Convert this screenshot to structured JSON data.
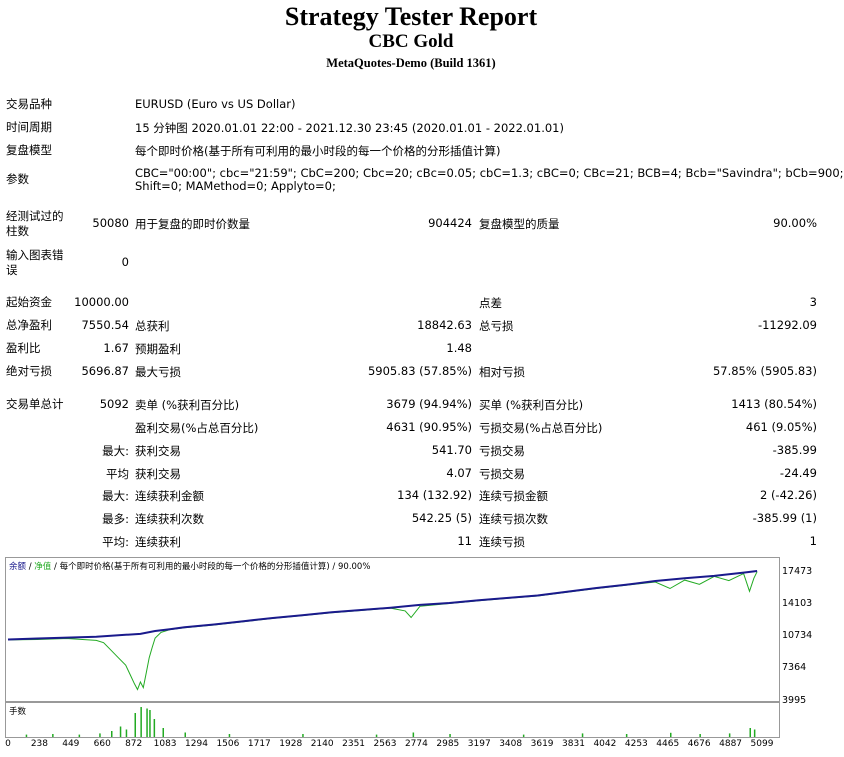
{
  "header": {
    "title": "Strategy Tester Report",
    "company": "CBC Gold",
    "server": "MetaQuotes-Demo (Build 1361)"
  },
  "settings": [
    {
      "label": "交易品种",
      "value": "EURUSD (Euro vs US Dollar)"
    },
    {
      "label": "时间周期",
      "value": "15 分钟图 2020.01.01 22:00 - 2021.12.30 23:45 (2020.01.01 - 2022.01.01)"
    },
    {
      "label": "复盘模型",
      "value": "每个即时价格(基于所有可利用的最小时段的每一个价格的分形插值计算)"
    },
    {
      "label": "参数",
      "value_line1": "CBC=\"00:00\"; cbc=\"21:59\"; CbC=200; Cbc=20; cBc=0.05; cbC=1.3; cBC=0; CBc=21; BCB=4; Bcb=\"Savindra\"; bCb=900;",
      "value_line2": "Shift=0; MAMethod=0; Applyto=0;"
    }
  ],
  "bars": {
    "label_line1": "经测试过的",
    "label_line2": "柱数",
    "value": "50080",
    "ticks_label": "用于复盘的即时价数量",
    "ticks_value": "904424",
    "quality_label": "复盘模型的质量",
    "quality_value": "90.00%"
  },
  "errors": {
    "label_line1": "输入图表错",
    "label_line2": "误",
    "value": "0"
  },
  "results": {
    "initial_deposit": {
      "label": "起始资金",
      "value": "10000.00"
    },
    "spread": {
      "label": "点差",
      "value": "3"
    },
    "net_profit": {
      "label": "总净盈利",
      "value": "7550.54"
    },
    "gross_profit": {
      "label": "总获利",
      "value": "18842.63"
    },
    "gross_loss": {
      "label": "总亏损",
      "value": "-11292.09"
    },
    "profit_factor": {
      "label": "盈利比",
      "value": "1.67"
    },
    "expected_payoff": {
      "label": "预期盈利",
      "value": "1.48"
    },
    "abs_drawdown": {
      "label": "绝对亏损",
      "value": "5696.87"
    },
    "max_drawdown": {
      "label": "最大亏损",
      "value": "5905.83 (57.85%)"
    },
    "rel_drawdown": {
      "label": "相对亏损",
      "value": "57.85% (5905.83)"
    },
    "total_trades": {
      "label": "交易单总计",
      "value": "5092"
    },
    "short": {
      "label": "卖单 (%获利百分比)",
      "value": "3679 (94.94%)"
    },
    "long": {
      "label": "买单 (%获利百分比)",
      "value": "1413 (80.54%)"
    },
    "profit_trades": {
      "label": "盈利交易(%占总百分比)",
      "value": "4631 (90.95%)"
    },
    "loss_trades": {
      "label": "亏损交易(%占总百分比)",
      "value": "461 (9.05%)"
    },
    "largest": {
      "prefix": "最大:",
      "profit_label": "获利交易",
      "profit_value": "541.70",
      "loss_label": "亏损交易",
      "loss_value": "-385.99"
    },
    "average": {
      "prefix": "平均",
      "profit_label": "获利交易",
      "profit_value": "4.07",
      "loss_label": "亏损交易",
      "loss_value": "-24.49"
    },
    "max_cons_amount": {
      "prefix": "最大:",
      "profit_label": "连续获利金额",
      "profit_value": "134 (132.92)",
      "loss_label": "连续亏损金额",
      "loss_value": "2 (-42.26)"
    },
    "max_cons_count": {
      "prefix": "最多:",
      "profit_label": "连续获利次数",
      "profit_value": "542.25 (5)",
      "loss_label": "连续亏损次数",
      "loss_value": "-385.99 (1)"
    },
    "avg_cons": {
      "prefix": "平均:",
      "profit_label": "连续获利",
      "profit_value": "11",
      "loss_label": "连续亏损",
      "loss_value": "1"
    }
  },
  "chart_data": {
    "type": "line",
    "legend_balance": "余额",
    "legend_equity": "净值",
    "legend_text": "每个即时价格(基于所有可利用的最小时段的每一个价格的分形插值计算) / 90.00%",
    "volume_label": "手数",
    "colors": {
      "balance": "#1a1a8c",
      "equity": "#22aa22",
      "volume": "#22aa22",
      "legend_balance": "#1a1a8c",
      "legend_equity": "#22aa22"
    },
    "ylim": [
      3995,
      17473
    ],
    "yticks": [
      "17473",
      "14103",
      "10734",
      "7364",
      "3995"
    ],
    "xlim": [
      0,
      5200
    ],
    "xticks": [
      "0",
      "238",
      "449",
      "660",
      "872",
      "1083",
      "1294",
      "1506",
      "1717",
      "1928",
      "2140",
      "2351",
      "2563",
      "2774",
      "2985",
      "3197",
      "3408",
      "3619",
      "3831",
      "4042",
      "4253",
      "4465",
      "4676",
      "4887",
      "5099"
    ],
    "balance": {
      "x": [
        0,
        200,
        400,
        600,
        700,
        800,
        900,
        1000,
        1100,
        1200,
        1400,
        1600,
        1800,
        2000,
        2200,
        2400,
        2600,
        2800,
        3000,
        3200,
        3400,
        3600,
        3800,
        4000,
        4200,
        4400,
        4600,
        4800,
        5000,
        5092
      ],
      "y": [
        10150,
        10250,
        10350,
        10450,
        10550,
        10650,
        10750,
        11050,
        11250,
        11450,
        11750,
        12100,
        12450,
        12750,
        13050,
        13300,
        13550,
        13850,
        14050,
        14350,
        14600,
        14850,
        15250,
        15650,
        16000,
        16400,
        16700,
        16950,
        17300,
        17473
      ]
    },
    "equity": {
      "x": [
        0,
        200,
        400,
        600,
        650,
        700,
        750,
        800,
        830,
        860,
        880,
        900,
        920,
        940,
        960,
        980,
        1000,
        1040,
        1100,
        1200,
        1400,
        1600,
        1800,
        2000,
        2200,
        2400,
        2600,
        2700,
        2740,
        2800,
        3000,
        3200,
        3400,
        3600,
        3800,
        4000,
        4200,
        4400,
        4500,
        4600,
        4700,
        4800,
        4900,
        5000,
        5040,
        5070,
        5092
      ],
      "y": [
        10100,
        10150,
        10250,
        10050,
        9800,
        9000,
        8200,
        7400,
        6400,
        5400,
        4800,
        5600,
        5000,
        6600,
        8200,
        9300,
        10300,
        10900,
        11200,
        11400,
        11700,
        12050,
        12400,
        12700,
        13000,
        13250,
        13500,
        13200,
        12500,
        13700,
        14000,
        14300,
        14550,
        14800,
        15200,
        15600,
        15950,
        16300,
        15600,
        16500,
        16050,
        16900,
        16450,
        17200,
        15300,
        16700,
        17400
      ]
    },
    "volume": {
      "x": [
        120,
        300,
        480,
        620,
        700,
        760,
        800,
        860,
        900,
        940,
        960,
        990,
        1050,
        1200,
        1500,
        2000,
        2500,
        2750,
        3000,
        3500,
        3900,
        4200,
        4500,
        4700,
        4900,
        5040,
        5070
      ],
      "y": [
        0.08,
        0.1,
        0.08,
        0.12,
        0.2,
        0.35,
        0.25,
        0.8,
        1.0,
        0.95,
        0.9,
        0.6,
        0.3,
        0.15,
        0.1,
        0.1,
        0.08,
        0.15,
        0.1,
        0.08,
        0.12,
        0.1,
        0.14,
        0.1,
        0.12,
        0.3,
        0.25
      ]
    }
  }
}
